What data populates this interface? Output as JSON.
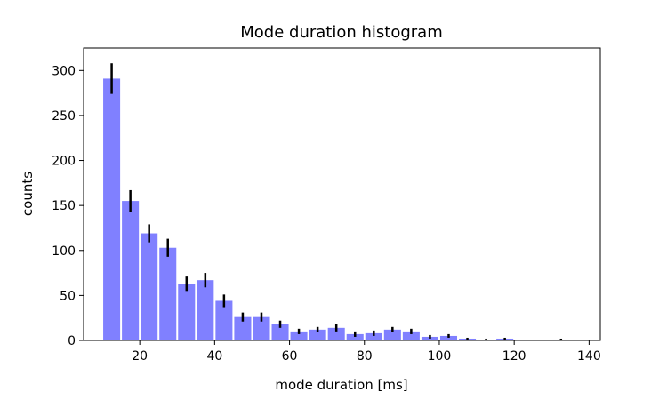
{
  "chart_data": {
    "type": "bar",
    "title": "Mode duration histogram",
    "xlabel": "mode duration [ms]",
    "ylabel": "counts",
    "xlim": [
      5,
      143
    ],
    "ylim": [
      0,
      325
    ],
    "xticks": [
      20,
      40,
      60,
      80,
      100,
      120,
      140
    ],
    "yticks": [
      0,
      50,
      100,
      150,
      200,
      250,
      300
    ],
    "bin_width": 5,
    "bar_color": "#8080ff",
    "errorbar_color": "#000000",
    "grid": false,
    "bins": [
      {
        "center": 12.5,
        "value": 291,
        "error": 17
      },
      {
        "center": 17.5,
        "value": 155,
        "error": 12
      },
      {
        "center": 22.5,
        "value": 119,
        "error": 10
      },
      {
        "center": 27.5,
        "value": 103,
        "error": 10
      },
      {
        "center": 32.5,
        "value": 63,
        "error": 8
      },
      {
        "center": 37.5,
        "value": 67,
        "error": 8
      },
      {
        "center": 42.5,
        "value": 44,
        "error": 7
      },
      {
        "center": 47.5,
        "value": 26,
        "error": 5
      },
      {
        "center": 52.5,
        "value": 26,
        "error": 5
      },
      {
        "center": 57.5,
        "value": 18,
        "error": 4
      },
      {
        "center": 62.5,
        "value": 10,
        "error": 3
      },
      {
        "center": 67.5,
        "value": 12,
        "error": 3
      },
      {
        "center": 72.5,
        "value": 14,
        "error": 4
      },
      {
        "center": 77.5,
        "value": 7,
        "error": 3
      },
      {
        "center": 82.5,
        "value": 8,
        "error": 3
      },
      {
        "center": 87.5,
        "value": 12,
        "error": 3
      },
      {
        "center": 92.5,
        "value": 10,
        "error": 3
      },
      {
        "center": 97.5,
        "value": 4,
        "error": 2
      },
      {
        "center": 102.5,
        "value": 5,
        "error": 2
      },
      {
        "center": 107.5,
        "value": 2,
        "error": 1
      },
      {
        "center": 112.5,
        "value": 1,
        "error": 1
      },
      {
        "center": 117.5,
        "value": 2,
        "error": 1
      },
      {
        "center": 122.5,
        "value": 0,
        "error": 0
      },
      {
        "center": 127.5,
        "value": 0,
        "error": 0
      },
      {
        "center": 132.5,
        "value": 1,
        "error": 1
      }
    ]
  }
}
